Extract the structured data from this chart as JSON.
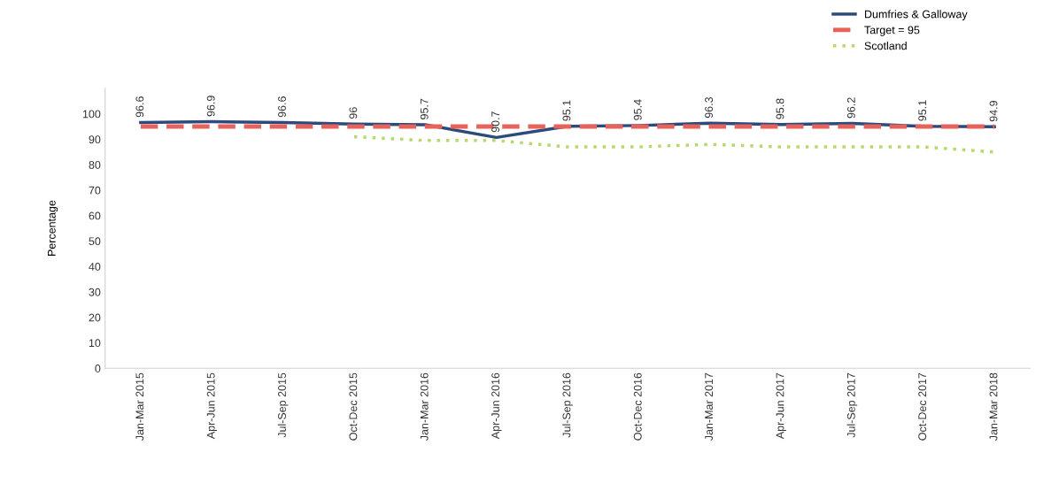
{
  "chart_data": {
    "type": "line",
    "ylabel": "Percentage",
    "categories": [
      "Jan-Mar 2015",
      "Apr-Jun 2015",
      "Jul-Sep 2015",
      "Oct-Dec 2015",
      "Jan-Mar 2016",
      "Apr-Jun 2016",
      "Jul-Sep 2016",
      "Oct-Dec 2016",
      "Jan-Mar 2017",
      "Apr-Jun 2017",
      "Jul-Sep 2017",
      "Oct-Dec 2017",
      "Jan-Mar 2018"
    ],
    "series": [
      {
        "name": "Dumfries & Galloway",
        "color": "#2e4a7a",
        "line_style": "solid",
        "values": [
          96.6,
          96.9,
          96.6,
          96,
          95.7,
          90.7,
          95.1,
          95.4,
          96.3,
          95.8,
          96.2,
          95.1,
          94.9
        ],
        "value_labels": [
          "96.6",
          "96.9",
          "96.6",
          "96",
          "95.7",
          "90.7",
          "95.1",
          "95.4",
          "96.3",
          "95.8",
          "96.2",
          "95.1",
          "94.9"
        ]
      },
      {
        "name": "Target = 95",
        "color": "#e8625c",
        "line_style": "dashed",
        "values": [
          95,
          95,
          95,
          95,
          95,
          95,
          95,
          95,
          95,
          95,
          95,
          95,
          95
        ]
      },
      {
        "name": "Scotland",
        "color": "#b5d96a",
        "line_style": "dotted",
        "values": [
          null,
          null,
          null,
          91,
          89.5,
          89.5,
          87,
          87,
          88,
          87,
          87,
          87,
          85
        ]
      }
    ],
    "ylim": [
      0,
      110
    ],
    "yticks": [
      0,
      10,
      20,
      30,
      40,
      50,
      60,
      70,
      80,
      90,
      100
    ],
    "grid": false,
    "legend": "top right",
    "marker": "none"
  }
}
